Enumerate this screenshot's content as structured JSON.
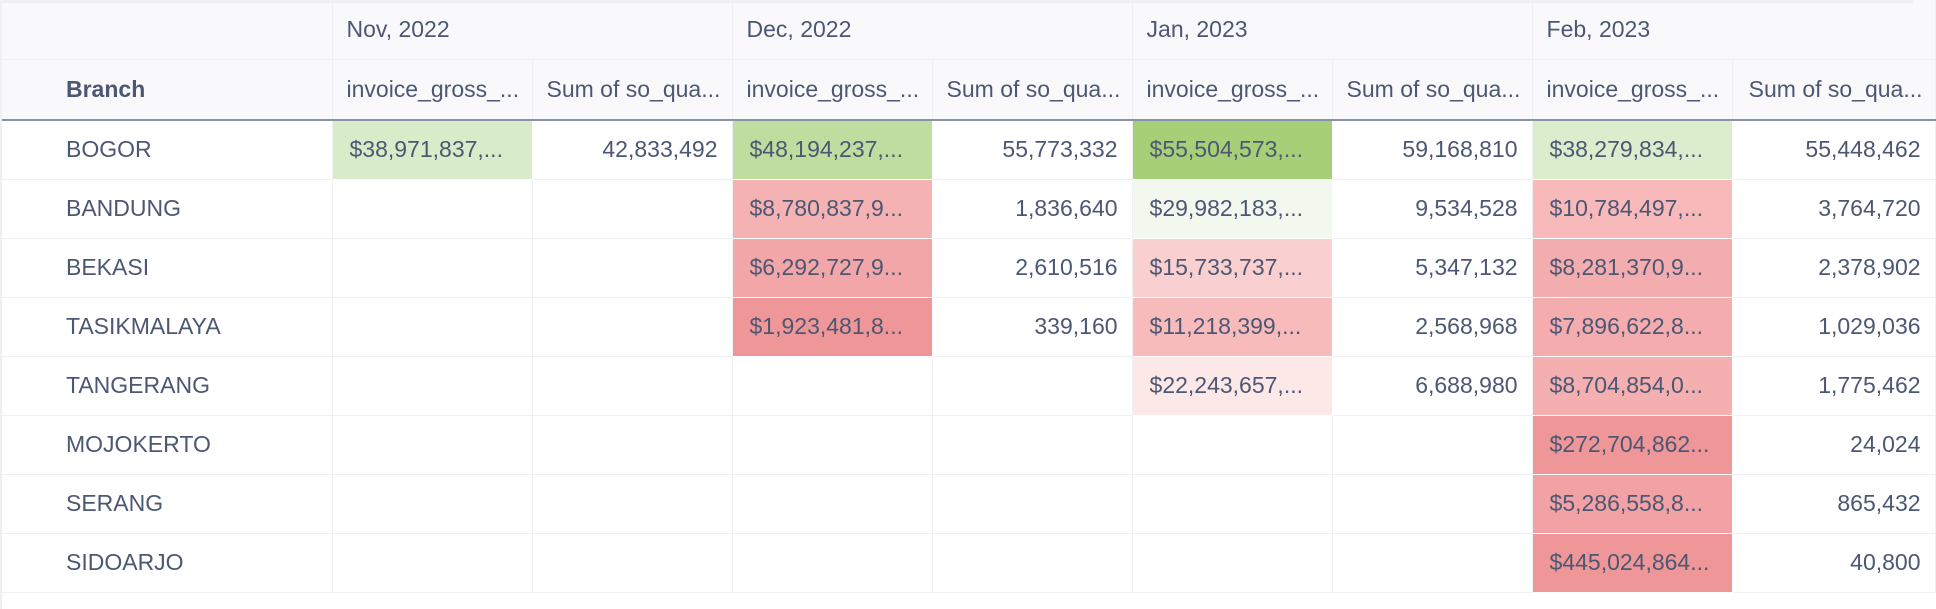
{
  "table": {
    "branch_header": "Branch",
    "months": [
      "Nov, 2022",
      "Dec, 2022",
      "Jan, 2023",
      "Feb, 2023"
    ],
    "metric_headers": [
      "invoice_gross_...",
      "Sum of so_qua..."
    ],
    "rows": [
      {
        "branch": "BOGOR",
        "cells": [
          {
            "money": "$38,971,837,...",
            "qty": "42,833,492",
            "color": "#d9ecc9"
          },
          {
            "money": "$48,194,237,...",
            "qty": "55,773,332",
            "color": "#bfdd9e"
          },
          {
            "money": "$55,504,573,...",
            "qty": "59,168,810",
            "color": "#a7cf78"
          },
          {
            "money": "$38,279,834,...",
            "qty": "55,448,462",
            "color": "#dcedcd"
          }
        ]
      },
      {
        "branch": "BANDUNG",
        "cells": [
          {
            "money": "",
            "qty": "",
            "color": ""
          },
          {
            "money": "$8,780,837,9...",
            "qty": "1,836,640",
            "color": "#f5b2b3"
          },
          {
            "money": "$29,982,183,...",
            "qty": "9,534,528",
            "color": "#f3f8ee"
          },
          {
            "money": "$10,784,497,...",
            "qty": "3,764,720",
            "color": "#f7b9ba"
          }
        ]
      },
      {
        "branch": "BEKASI",
        "cells": [
          {
            "money": "",
            "qty": "",
            "color": ""
          },
          {
            "money": "$6,292,727,9...",
            "qty": "2,610,516",
            "color": "#f2a6a8"
          },
          {
            "money": "$15,733,737,...",
            "qty": "5,347,132",
            "color": "#f9cfd0"
          },
          {
            "money": "$8,281,370,9...",
            "qty": "2,378,902",
            "color": "#f4adaf"
          }
        ]
      },
      {
        "branch": "TASIKMALAYA",
        "cells": [
          {
            "money": "",
            "qty": "",
            "color": ""
          },
          {
            "money": "$1,923,481,8...",
            "qty": "339,160",
            "color": "#ef9698"
          },
          {
            "money": "$11,218,399,...",
            "qty": "2,568,968",
            "color": "#f7bbbc"
          },
          {
            "money": "$7,896,622,8...",
            "qty": "1,029,036",
            "color": "#f4acae"
          }
        ]
      },
      {
        "branch": "TANGERANG",
        "cells": [
          {
            "money": "",
            "qty": "",
            "color": ""
          },
          {
            "money": "",
            "qty": "",
            "color": ""
          },
          {
            "money": "$22,243,657,...",
            "qty": "6,688,980",
            "color": "#fde8e8"
          },
          {
            "money": "$8,704,854,0...",
            "qty": "1,775,462",
            "color": "#f4afb0"
          }
        ]
      },
      {
        "branch": "MOJOKERTO",
        "cells": [
          {
            "money": "",
            "qty": "",
            "color": ""
          },
          {
            "money": "",
            "qty": "",
            "color": ""
          },
          {
            "money": "",
            "qty": "",
            "color": ""
          },
          {
            "money": "$272,704,862...",
            "qty": "24,024",
            "color": "#ef9698"
          }
        ]
      },
      {
        "branch": "SERANG",
        "cells": [
          {
            "money": "",
            "qty": "",
            "color": ""
          },
          {
            "money": "",
            "qty": "",
            "color": ""
          },
          {
            "money": "",
            "qty": "",
            "color": ""
          },
          {
            "money": "$5,286,558,8...",
            "qty": "865,432",
            "color": "#f2a2a4"
          }
        ]
      },
      {
        "branch": "SIDOARJO",
        "cells": [
          {
            "money": "",
            "qty": "",
            "color": ""
          },
          {
            "money": "",
            "qty": "",
            "color": ""
          },
          {
            "money": "",
            "qty": "",
            "color": ""
          },
          {
            "money": "$445,024,864...",
            "qty": "40,800",
            "color": "#ef9698"
          }
        ]
      }
    ]
  }
}
